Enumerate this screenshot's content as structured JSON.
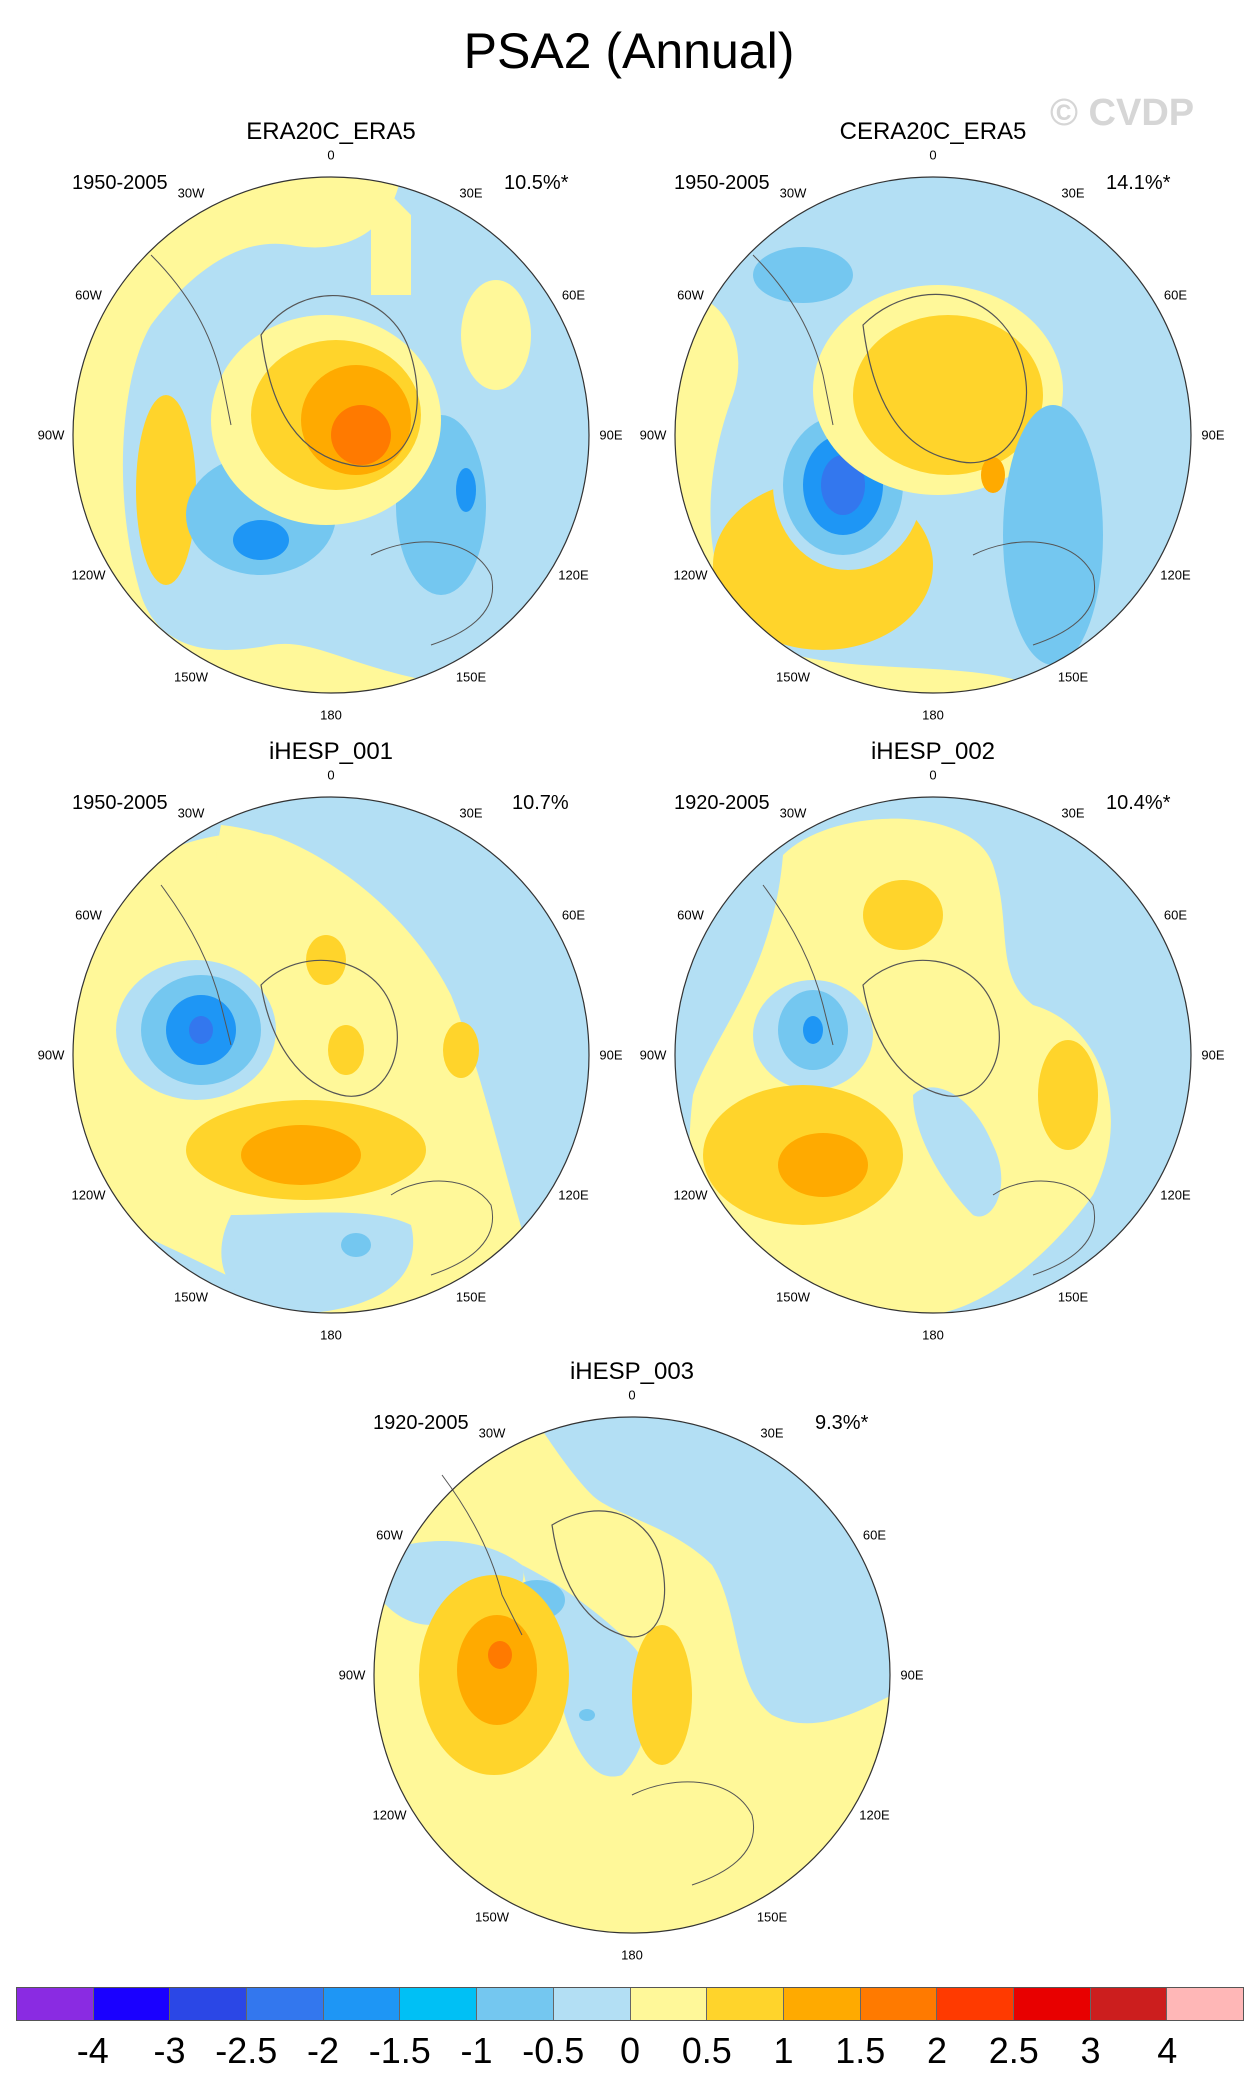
{
  "title": "PSA2 (Annual)",
  "watermark": "© CVDP",
  "lon_labels": [
    "0",
    "30E",
    "60E",
    "90E",
    "120E",
    "150E",
    "180",
    "150W",
    "120W",
    "90W",
    "60W",
    "30W"
  ],
  "panels": [
    {
      "name": "ERA20C_ERA5",
      "years": "1950-2005",
      "pct": "10.5%*"
    },
    {
      "name": "CERA20C_ERA5",
      "years": "1950-2005",
      "pct": "14.1%*"
    },
    {
      "name": "iHESP_001",
      "years": "1950-2005",
      "pct": "10.7%"
    },
    {
      "name": "iHESP_002",
      "years": "1920-2005",
      "pct": "10.4%*"
    },
    {
      "name": "iHESP_003",
      "years": "1920-2005",
      "pct": "9.3%*"
    }
  ],
  "colorbar": {
    "colors": [
      "#8a2be2",
      "#1a00ff",
      "#2b47e6",
      "#3377ee",
      "#1e96f5",
      "#00c0f5",
      "#74c7f0",
      "#b3dff4",
      "#fff899",
      "#ffd42b",
      "#ffaa00",
      "#ff7a00",
      "#ff3a00",
      "#e80000",
      "#cc1e1e",
      "#ffb7b7"
    ],
    "ticks": [
      "-4",
      "-3",
      "-2.5",
      "-2",
      "-1.5",
      "-1",
      "-0.5",
      "0",
      "0.5",
      "1",
      "1.5",
      "2",
      "2.5",
      "3",
      "4"
    ]
  }
}
